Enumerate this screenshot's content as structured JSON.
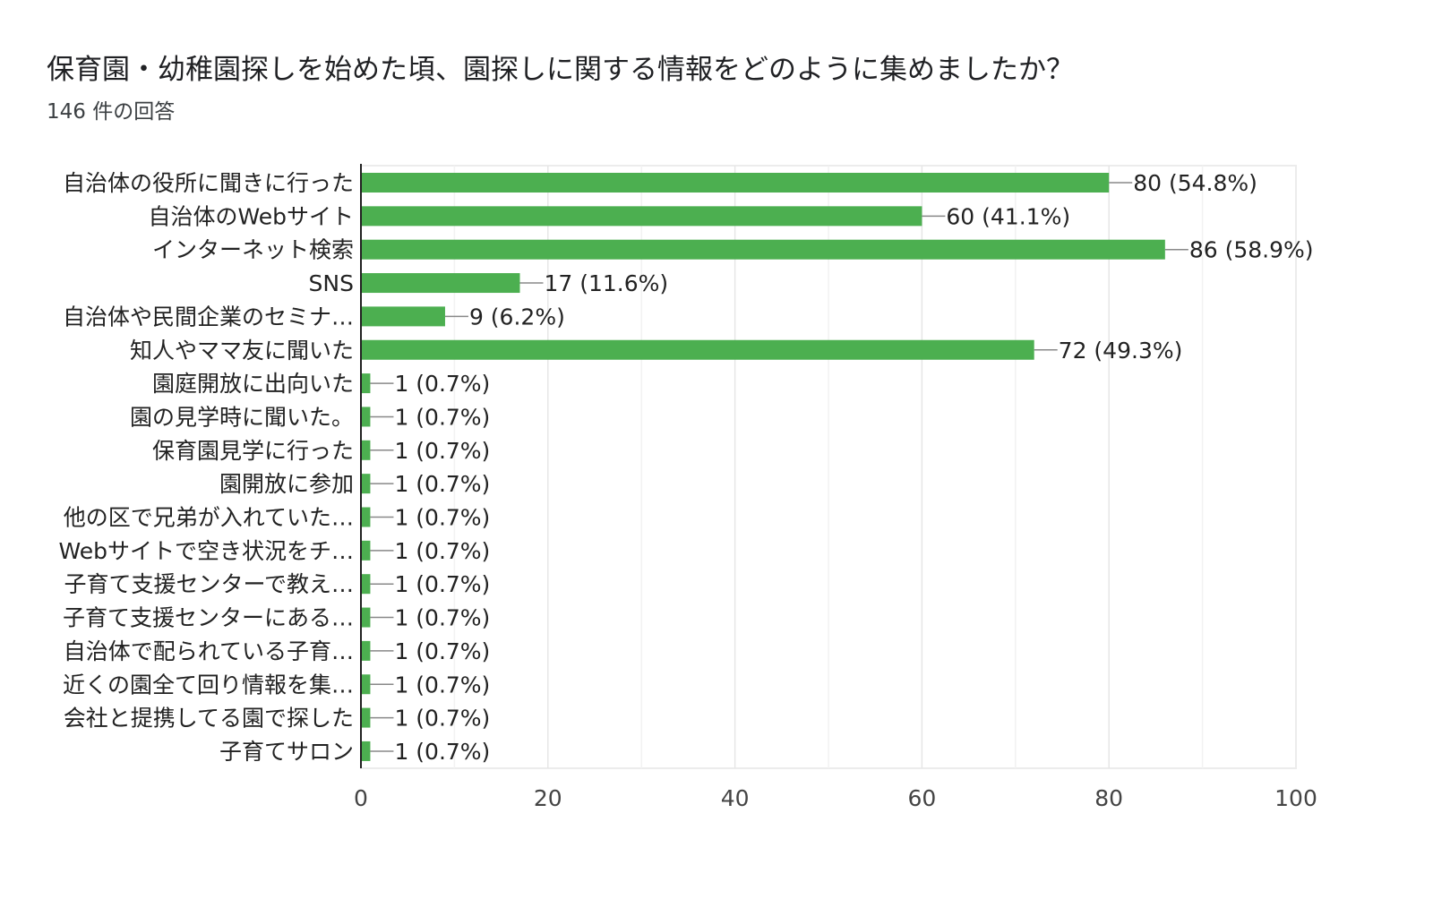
{
  "title": "保育園・幼稚園探しを始めた頃、園探しに関する情報をどのように集めましたか？",
  "subtitle": "146 件の回答",
  "chart_data": {
    "type": "bar",
    "orientation": "horizontal",
    "categories": [
      "自治体の役所に聞きに行った",
      "自治体のWebサイト",
      "インターネット検索",
      "SNS",
      "自治体や民間企業のセミナ…",
      "知人やママ友に聞いた",
      "園庭開放に出向いた",
      "園の見学時に聞いた。",
      "保育園見学に行った",
      "園開放に参加",
      "他の区で兄弟が入れていた…",
      "Webサイトで空き状況をチ…",
      "子育て支援センターで教え…",
      "子育て支援センターにある…",
      "自治体で配られている子育…",
      "近くの園全て回り情報を集…",
      "会社と提携してる園で探した",
      "子育てサロン"
    ],
    "values": [
      80,
      60,
      86,
      17,
      9,
      72,
      1,
      1,
      1,
      1,
      1,
      1,
      1,
      1,
      1,
      1,
      1,
      1
    ],
    "value_labels": [
      "80 (54.8%)",
      "60 (41.1%)",
      "86 (58.9%)",
      "17 (11.6%)",
      "9 (6.2%)",
      "72 (49.3%)",
      "1 (0.7%)",
      "1 (0.7%)",
      "1 (0.7%)",
      "1 (0.7%)",
      "1 (0.7%)",
      "1 (0.7%)",
      "1 (0.7%)",
      "1 (0.7%)",
      "1 (0.7%)",
      "1 (0.7%)",
      "1 (0.7%)",
      "1 (0.7%)"
    ],
    "xlim": [
      0,
      100
    ],
    "x_ticks": [
      "0",
      "20",
      "40",
      "60",
      "80",
      "100"
    ],
    "grid": true,
    "bar_color": "#4caf50",
    "xlabel": "",
    "ylabel": ""
  }
}
